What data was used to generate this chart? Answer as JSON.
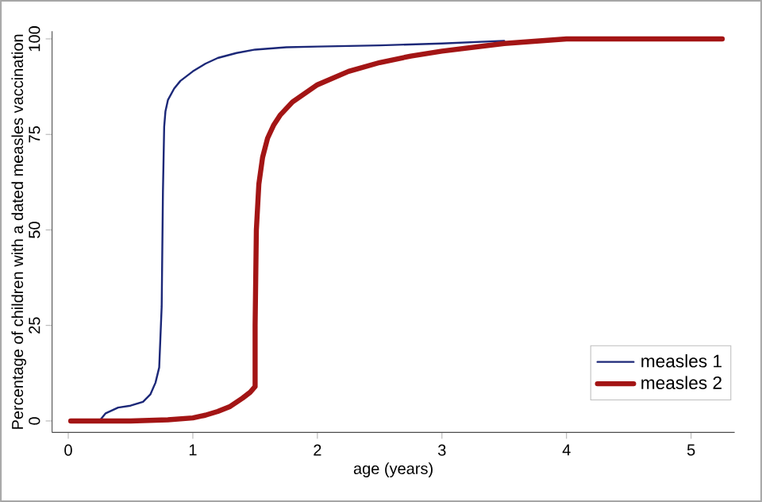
{
  "chart_data": {
    "type": "line",
    "xlabel": "age (years)",
    "ylabel": "Percentage of children with a dated measles vaccination",
    "xlim": [
      -0.13,
      5.35
    ],
    "ylim": [
      -3,
      102
    ],
    "xticks": [
      0,
      1,
      2,
      3,
      4,
      5
    ],
    "yticks": [
      0,
      25,
      50,
      75,
      100
    ],
    "grid": false,
    "legend": "bottom right",
    "marker": "none",
    "line_style": "solid",
    "series": [
      {
        "name": "measles 1",
        "color": "#1c2878",
        "x": [
          0.25,
          0.3,
          0.4,
          0.5,
          0.6,
          0.66,
          0.7,
          0.73,
          0.75,
          0.76,
          0.77,
          0.78,
          0.8,
          0.85,
          0.9,
          1.0,
          1.1,
          1.2,
          1.35,
          1.5,
          1.75,
          2.0,
          2.5,
          3.0,
          3.5
        ],
        "values": [
          0,
          2,
          3.5,
          4,
          5,
          7,
          10,
          14,
          30,
          60,
          77,
          81,
          84,
          87,
          89,
          91.5,
          93.5,
          95,
          96.3,
          97.2,
          97.8,
          98,
          98.3,
          98.8,
          99.5
        ]
      },
      {
        "name": "measles 2",
        "color": "#a31515",
        "x": [
          0.02,
          0.5,
          0.8,
          1.0,
          1.1,
          1.2,
          1.3,
          1.4,
          1.46,
          1.5,
          1.5,
          1.51,
          1.53,
          1.56,
          1.6,
          1.65,
          1.7,
          1.8,
          2.0,
          2.25,
          2.5,
          2.75,
          3.0,
          3.5,
          4.0,
          4.5,
          5.25
        ],
        "values": [
          0,
          0,
          0.3,
          0.8,
          1.5,
          2.5,
          3.8,
          6,
          7.5,
          9,
          25,
          50,
          62,
          69,
          74,
          77.5,
          80,
          83.5,
          88,
          91.5,
          93.8,
          95.5,
          96.8,
          98.8,
          100,
          100,
          100
        ]
      }
    ]
  }
}
